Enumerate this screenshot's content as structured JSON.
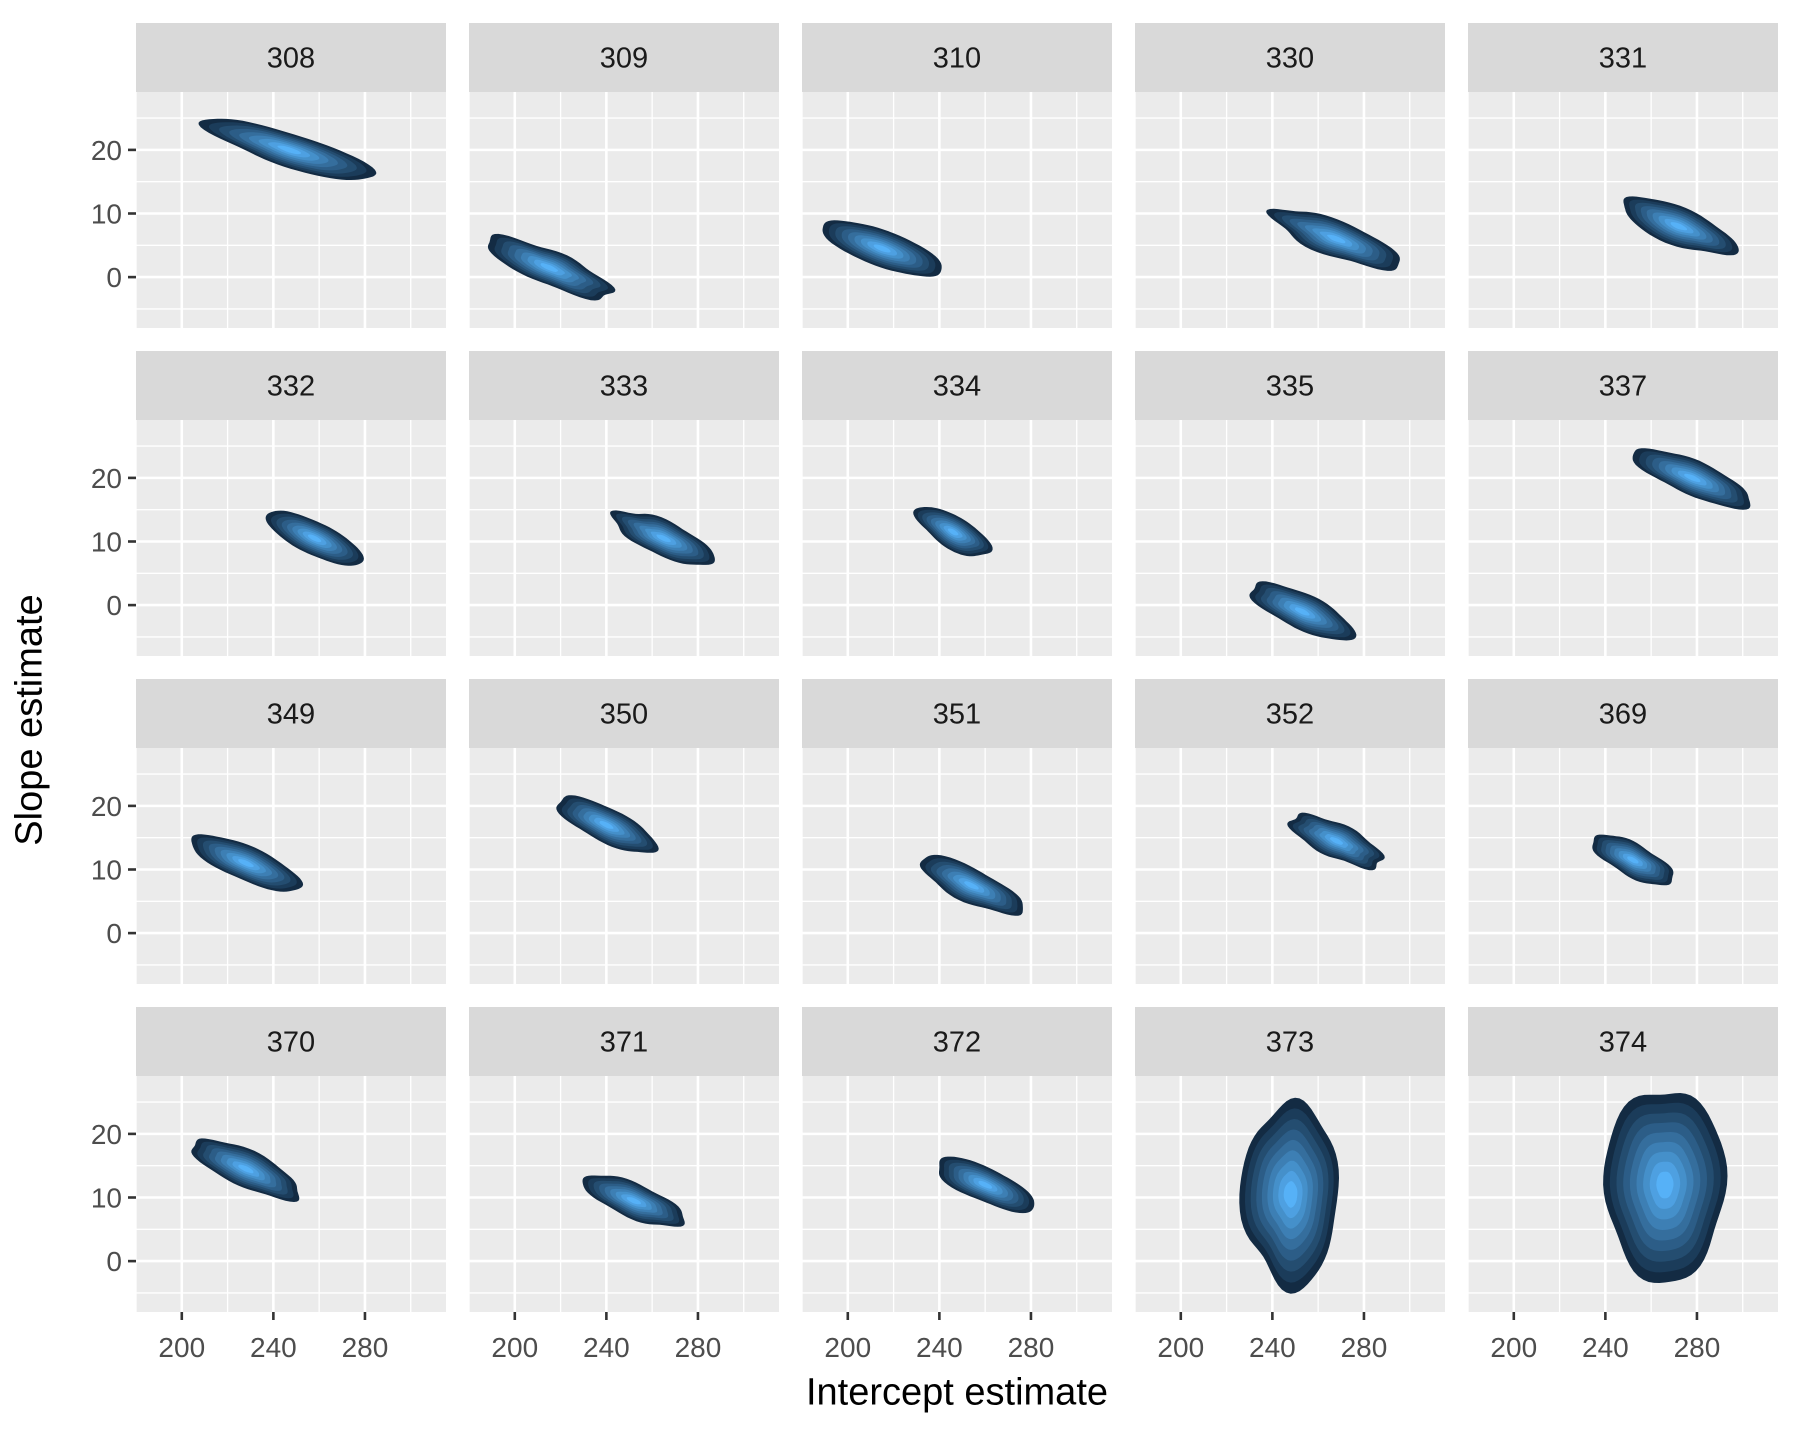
{
  "chart_data": {
    "type": "density2d_filled_facets",
    "title": "",
    "xlabel": "Intercept estimate",
    "ylabel": "Slope estimate",
    "xlim": [
      180,
      315
    ],
    "ylim": [
      -8,
      29
    ],
    "x_ticks": [
      200,
      240,
      280
    ],
    "y_ticks": [
      0,
      10,
      20
    ],
    "x_minor": [
      180,
      220,
      260,
      300
    ],
    "y_minor": [
      -5,
      5,
      15,
      25
    ],
    "grid": true,
    "legend": "none",
    "layout": {
      "rows": 4,
      "cols": 5,
      "shared_axes": true
    },
    "colors": {
      "panel_bg": "#EBEBEB",
      "strip_bg": "#D9D9D9",
      "grid": "#FFFFFF",
      "fill_low": "#132B43",
      "fill_high": "#56B1F7"
    },
    "panels": [
      {
        "label": "308",
        "cx": 247,
        "cy": 20.0,
        "x0": 210,
        "y0": 23.5,
        "x1": 280,
        "y1": 15.5,
        "width": 4.0
      },
      {
        "label": "309",
        "cx": 215,
        "cy": 1.5,
        "x0": 191,
        "y0": 5.0,
        "x1": 244,
        "y1": -3.0,
        "width": 4.0
      },
      {
        "label": "310",
        "cx": 215,
        "cy": 4.5,
        "x0": 191,
        "y0": 8.0,
        "x1": 244,
        "y1": 0.5,
        "width": 4.0
      },
      {
        "label": "330",
        "cx": 268,
        "cy": 6.0,
        "x0": 241,
        "y0": 9.5,
        "x1": 297,
        "y1": 1.5,
        "width": 4.0
      },
      {
        "label": "331",
        "cx": 272,
        "cy": 8.0,
        "x0": 246,
        "y0": 11.0,
        "x1": 298,
        "y1": 3.5,
        "width": 4.0
      },
      {
        "label": "332",
        "cx": 258,
        "cy": 10.5,
        "x0": 240,
        "y0": 13.5,
        "x1": 280,
        "y1": 6.5,
        "width": 3.8
      },
      {
        "label": "333",
        "cx": 265,
        "cy": 10.5,
        "x0": 245,
        "y0": 13.5,
        "x1": 289,
        "y1": 6.5,
        "width": 3.8
      },
      {
        "label": "334",
        "cx": 246,
        "cy": 11.5,
        "x0": 234,
        "y0": 14.5,
        "x1": 265,
        "y1": 8.0,
        "width": 3.6
      },
      {
        "label": "335",
        "cx": 253,
        "cy": -1.0,
        "x0": 233,
        "y0": 3.0,
        "x1": 278,
        "y1": -4.5,
        "width": 4.0
      },
      {
        "label": "337",
        "cx": 278,
        "cy": 20.0,
        "x0": 254,
        "y0": 23.5,
        "x1": 304,
        "y1": 16.0,
        "width": 4.0
      },
      {
        "label": "349",
        "cx": 228,
        "cy": 11.0,
        "x0": 205,
        "y0": 15.0,
        "x1": 253,
        "y1": 7.5,
        "width": 3.8
      },
      {
        "label": "350",
        "cx": 240,
        "cy": 17.0,
        "x0": 219,
        "y0": 20.5,
        "x1": 262,
        "y1": 13.0,
        "width": 3.8
      },
      {
        "label": "351",
        "cx": 254,
        "cy": 7.5,
        "x0": 236,
        "y0": 11.0,
        "x1": 281,
        "y1": 3.5,
        "width": 3.8
      },
      {
        "label": "352",
        "cx": 268,
        "cy": 14.5,
        "x0": 250,
        "y0": 17.5,
        "x1": 290,
        "y1": 10.5,
        "width": 3.8
      },
      {
        "label": "369",
        "cx": 252,
        "cy": 11.5,
        "x0": 234,
        "y0": 14.5,
        "x1": 269,
        "y1": 8.0,
        "width": 3.6
      },
      {
        "label": "370",
        "cx": 228,
        "cy": 14.5,
        "x0": 205,
        "y0": 19.0,
        "x1": 253,
        "y1": 11.0,
        "width": 4.0
      },
      {
        "label": "371",
        "cx": 252,
        "cy": 9.5,
        "x0": 230,
        "y0": 12.5,
        "x1": 274,
        "y1": 6.0,
        "width": 3.8
      },
      {
        "label": "372",
        "cx": 260,
        "cy": 12.0,
        "x0": 241,
        "y0": 15.5,
        "x1": 284,
        "y1": 8.5,
        "width": 3.8
      },
      {
        "label": "373",
        "cx": 248,
        "cy": 10.5,
        "x0": 229,
        "y0": -4.0,
        "x1": 271,
        "y1": 25.0,
        "round": true
      },
      {
        "label": "374",
        "cx": 266,
        "cy": 12.0,
        "x0": 245,
        "y0": -3.5,
        "x1": 298,
        "y1": 27.0,
        "round": true
      }
    ]
  },
  "axes": {
    "xlabel": "Intercept estimate",
    "ylabel": "Slope estimate"
  }
}
